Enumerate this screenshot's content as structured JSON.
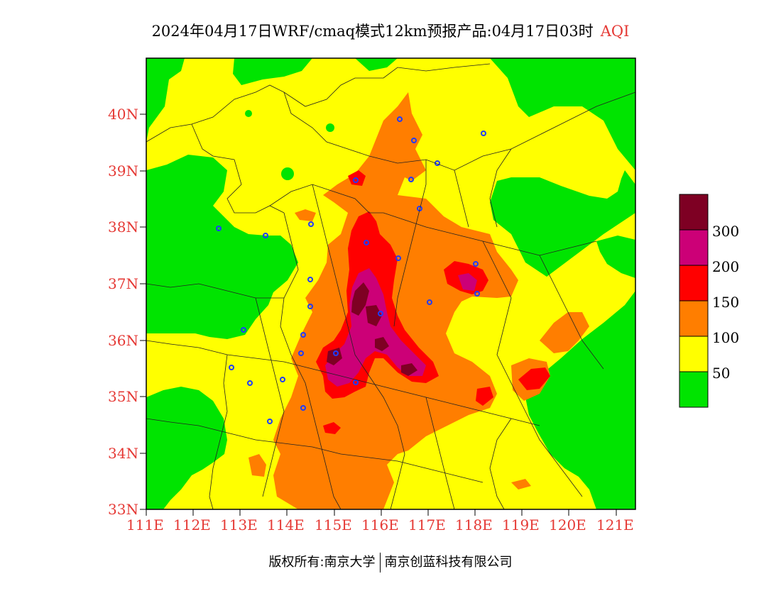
{
  "title": {
    "main": "2024年04月17日WRF/cmaq模式12km预报产品:04月17日03时",
    "product": "AQI"
  },
  "axes": {
    "lat_labels": [
      "40N",
      "39N",
      "38N",
      "37N",
      "36N",
      "35N",
      "34N",
      "33N"
    ],
    "lon_labels": [
      "111E",
      "112E",
      "113E",
      "114E",
      "115E",
      "116E",
      "117E",
      "118E",
      "119E",
      "120E",
      "121E"
    ],
    "lon_range": [
      111,
      121.4
    ],
    "lat_range": [
      33,
      40.95
    ]
  },
  "legend": {
    "labels": [
      "300",
      "200",
      "150",
      "100",
      "50"
    ],
    "colors": {
      "good": "#00e400",
      "moderate": "#ffff00",
      "usg": "#ff7e00",
      "unhealthy": "#ff0000",
      "very_unhealthy": "#cc0077",
      "hazardous": "#7e0023"
    }
  },
  "footer": {
    "left": "版权所有:南京大学",
    "right": "南京创蓝科技有限公司"
  }
}
